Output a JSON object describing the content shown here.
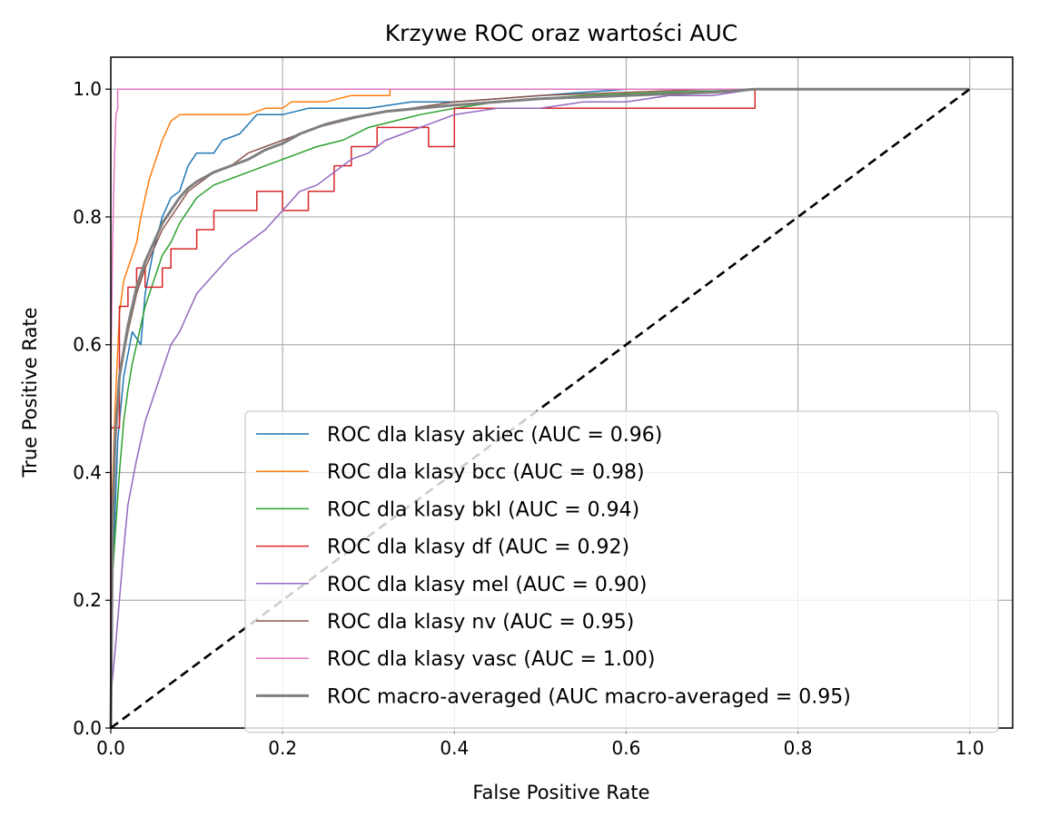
{
  "chart_data": {
    "type": "line",
    "title": "Krzywe ROC oraz wartości AUC",
    "xlabel": "False Positive Rate",
    "ylabel": "True Positive Rate",
    "xlim": [
      0.0,
      1.05
    ],
    "ylim": [
      0.0,
      1.05
    ],
    "xticks": [
      "0.0",
      "0.2",
      "0.4",
      "0.6",
      "0.8",
      "1.0"
    ],
    "yticks": [
      "0.0",
      "0.2",
      "0.4",
      "0.6",
      "0.8",
      "1.0"
    ],
    "grid": true,
    "legend_position": "lower-right",
    "series": [
      {
        "name": "ROC dla klasy akiec (AUC = 0.96)",
        "color": "#1f77b4",
        "points": [
          [
            0,
            0
          ],
          [
            0,
            0.18
          ],
          [
            0.004,
            0.3
          ],
          [
            0.008,
            0.45
          ],
          [
            0.015,
            0.55
          ],
          [
            0.025,
            0.62
          ],
          [
            0.035,
            0.6
          ],
          [
            0.04,
            0.68
          ],
          [
            0.05,
            0.75
          ],
          [
            0.06,
            0.8
          ],
          [
            0.07,
            0.83
          ],
          [
            0.08,
            0.84
          ],
          [
            0.09,
            0.88
          ],
          [
            0.1,
            0.9
          ],
          [
            0.12,
            0.9
          ],
          [
            0.13,
            0.92
          ],
          [
            0.15,
            0.93
          ],
          [
            0.17,
            0.96
          ],
          [
            0.2,
            0.96
          ],
          [
            0.23,
            0.97
          ],
          [
            0.27,
            0.97
          ],
          [
            0.3,
            0.97
          ],
          [
            0.35,
            0.98
          ],
          [
            0.4,
            0.98
          ],
          [
            0.5,
            0.99
          ],
          [
            0.6,
            1.0
          ],
          [
            0.8,
            1.0
          ],
          [
            1.0,
            1.0
          ]
        ]
      },
      {
        "name": "ROC dla klasy bcc (AUC = 0.98)",
        "color": "#ff7f0e",
        "points": [
          [
            0,
            0
          ],
          [
            0,
            0.3
          ],
          [
            0.005,
            0.5
          ],
          [
            0.01,
            0.65
          ],
          [
            0.015,
            0.7
          ],
          [
            0.02,
            0.72
          ],
          [
            0.03,
            0.76
          ],
          [
            0.035,
            0.8
          ],
          [
            0.04,
            0.83
          ],
          [
            0.045,
            0.86
          ],
          [
            0.05,
            0.88
          ],
          [
            0.055,
            0.9
          ],
          [
            0.06,
            0.92
          ],
          [
            0.07,
            0.95
          ],
          [
            0.08,
            0.96
          ],
          [
            0.1,
            0.96
          ],
          [
            0.12,
            0.96
          ],
          [
            0.14,
            0.96
          ],
          [
            0.16,
            0.96
          ],
          [
            0.18,
            0.97
          ],
          [
            0.2,
            0.97
          ],
          [
            0.21,
            0.98
          ],
          [
            0.25,
            0.98
          ],
          [
            0.28,
            0.99
          ],
          [
            0.325,
            0.99
          ],
          [
            0.325,
            1.0
          ],
          [
            0.5,
            1.0
          ],
          [
            1.0,
            1.0
          ]
        ]
      },
      {
        "name": "ROC dla klasy bkl (AUC = 0.94)",
        "color": "#2ca02c",
        "points": [
          [
            0,
            0
          ],
          [
            0,
            0.2
          ],
          [
            0.005,
            0.3
          ],
          [
            0.01,
            0.4
          ],
          [
            0.015,
            0.48
          ],
          [
            0.02,
            0.53
          ],
          [
            0.025,
            0.57
          ],
          [
            0.03,
            0.6
          ],
          [
            0.035,
            0.63
          ],
          [
            0.04,
            0.66
          ],
          [
            0.05,
            0.7
          ],
          [
            0.06,
            0.74
          ],
          [
            0.07,
            0.76
          ],
          [
            0.08,
            0.79
          ],
          [
            0.09,
            0.81
          ],
          [
            0.1,
            0.83
          ],
          [
            0.12,
            0.85
          ],
          [
            0.14,
            0.86
          ],
          [
            0.16,
            0.87
          ],
          [
            0.18,
            0.88
          ],
          [
            0.2,
            0.89
          ],
          [
            0.22,
            0.9
          ],
          [
            0.24,
            0.91
          ],
          [
            0.27,
            0.92
          ],
          [
            0.3,
            0.94
          ],
          [
            0.33,
            0.95
          ],
          [
            0.36,
            0.96
          ],
          [
            0.4,
            0.97
          ],
          [
            0.45,
            0.98
          ],
          [
            0.55,
            0.99
          ],
          [
            0.65,
            0.995
          ],
          [
            0.77,
            1.0
          ],
          [
            1.0,
            1.0
          ]
        ]
      },
      {
        "name": "ROC dla klasy df (AUC = 0.92)",
        "color": "#d62728",
        "points": [
          [
            0,
            0
          ],
          [
            0,
            0.47
          ],
          [
            0.01,
            0.47
          ],
          [
            0.01,
            0.66
          ],
          [
            0.02,
            0.66
          ],
          [
            0.02,
            0.69
          ],
          [
            0.03,
            0.69
          ],
          [
            0.03,
            0.72
          ],
          [
            0.04,
            0.72
          ],
          [
            0.04,
            0.69
          ],
          [
            0.06,
            0.69
          ],
          [
            0.06,
            0.72
          ],
          [
            0.07,
            0.72
          ],
          [
            0.07,
            0.75
          ],
          [
            0.1,
            0.75
          ],
          [
            0.1,
            0.78
          ],
          [
            0.12,
            0.78
          ],
          [
            0.12,
            0.81
          ],
          [
            0.17,
            0.81
          ],
          [
            0.17,
            0.84
          ],
          [
            0.2,
            0.84
          ],
          [
            0.2,
            0.81
          ],
          [
            0.23,
            0.81
          ],
          [
            0.23,
            0.84
          ],
          [
            0.26,
            0.84
          ],
          [
            0.26,
            0.88
          ],
          [
            0.28,
            0.88
          ],
          [
            0.28,
            0.91
          ],
          [
            0.31,
            0.91
          ],
          [
            0.31,
            0.94
          ],
          [
            0.37,
            0.94
          ],
          [
            0.37,
            0.91
          ],
          [
            0.4,
            0.91
          ],
          [
            0.4,
            0.97
          ],
          [
            0.75,
            0.97
          ],
          [
            0.75,
            1.0
          ],
          [
            1.0,
            1.0
          ]
        ]
      },
      {
        "name": "ROC dla klasy mel (AUC = 0.90)",
        "color": "#9467bd",
        "points": [
          [
            0,
            0
          ],
          [
            0,
            0.05
          ],
          [
            0.005,
            0.12
          ],
          [
            0.01,
            0.2
          ],
          [
            0.015,
            0.28
          ],
          [
            0.02,
            0.35
          ],
          [
            0.03,
            0.42
          ],
          [
            0.04,
            0.48
          ],
          [
            0.05,
            0.52
          ],
          [
            0.06,
            0.56
          ],
          [
            0.07,
            0.6
          ],
          [
            0.08,
            0.62
          ],
          [
            0.09,
            0.65
          ],
          [
            0.1,
            0.68
          ],
          [
            0.12,
            0.71
          ],
          [
            0.14,
            0.74
          ],
          [
            0.16,
            0.76
          ],
          [
            0.18,
            0.78
          ],
          [
            0.2,
            0.81
          ],
          [
            0.22,
            0.84
          ],
          [
            0.24,
            0.85
          ],
          [
            0.26,
            0.87
          ],
          [
            0.28,
            0.89
          ],
          [
            0.3,
            0.9
          ],
          [
            0.32,
            0.92
          ],
          [
            0.34,
            0.93
          ],
          [
            0.36,
            0.94
          ],
          [
            0.38,
            0.95
          ],
          [
            0.4,
            0.96
          ],
          [
            0.45,
            0.97
          ],
          [
            0.5,
            0.97
          ],
          [
            0.55,
            0.98
          ],
          [
            0.6,
            0.98
          ],
          [
            0.65,
            0.99
          ],
          [
            0.7,
            0.99
          ],
          [
            0.75,
            1.0
          ],
          [
            1.0,
            1.0
          ]
        ]
      },
      {
        "name": "ROC dla klasy nv (AUC = 0.95)",
        "color": "#8c564b",
        "points": [
          [
            0,
            0
          ],
          [
            0,
            0.3
          ],
          [
            0.005,
            0.45
          ],
          [
            0.01,
            0.55
          ],
          [
            0.02,
            0.62
          ],
          [
            0.03,
            0.68
          ],
          [
            0.04,
            0.72
          ],
          [
            0.05,
            0.75
          ],
          [
            0.06,
            0.78
          ],
          [
            0.07,
            0.8
          ],
          [
            0.08,
            0.82
          ],
          [
            0.09,
            0.84
          ],
          [
            0.1,
            0.85
          ],
          [
            0.12,
            0.87
          ],
          [
            0.14,
            0.88
          ],
          [
            0.16,
            0.9
          ],
          [
            0.18,
            0.91
          ],
          [
            0.2,
            0.92
          ],
          [
            0.22,
            0.93
          ],
          [
            0.24,
            0.94
          ],
          [
            0.27,
            0.95
          ],
          [
            0.3,
            0.96
          ],
          [
            0.35,
            0.97
          ],
          [
            0.4,
            0.98
          ],
          [
            0.5,
            0.99
          ],
          [
            0.6,
            0.995
          ],
          [
            0.7,
            1.0
          ],
          [
            1.0,
            1.0
          ]
        ]
      },
      {
        "name": "ROC dla klasy vasc (AUC = 1.00)",
        "color": "#e377c2",
        "points": [
          [
            0,
            0
          ],
          [
            0,
            0.55
          ],
          [
            0.002,
            0.75
          ],
          [
            0.004,
            0.88
          ],
          [
            0.006,
            0.96
          ],
          [
            0.008,
            0.97
          ],
          [
            0.008,
            1.0
          ],
          [
            1.0,
            1.0
          ]
        ]
      },
      {
        "name": "ROC macro-averaged (AUC macro-averaged = 0.95)",
        "color": "#7f7f7f",
        "points": [
          [
            0,
            0
          ],
          [
            0.002,
            0.3
          ],
          [
            0.005,
            0.45
          ],
          [
            0.01,
            0.55
          ],
          [
            0.02,
            0.63
          ],
          [
            0.03,
            0.69
          ],
          [
            0.04,
            0.73
          ],
          [
            0.05,
            0.76
          ],
          [
            0.06,
            0.79
          ],
          [
            0.07,
            0.81
          ],
          [
            0.08,
            0.83
          ],
          [
            0.09,
            0.845
          ],
          [
            0.1,
            0.855
          ],
          [
            0.12,
            0.87
          ],
          [
            0.14,
            0.88
          ],
          [
            0.16,
            0.89
          ],
          [
            0.18,
            0.905
          ],
          [
            0.2,
            0.915
          ],
          [
            0.22,
            0.93
          ],
          [
            0.25,
            0.945
          ],
          [
            0.28,
            0.955
          ],
          [
            0.32,
            0.965
          ],
          [
            0.36,
            0.97
          ],
          [
            0.4,
            0.975
          ],
          [
            0.45,
            0.98
          ],
          [
            0.5,
            0.985
          ],
          [
            0.6,
            0.99
          ],
          [
            0.7,
            0.995
          ],
          [
            0.75,
            1.0
          ],
          [
            1.0,
            1.0
          ]
        ],
        "thick": true
      }
    ],
    "reference_line": {
      "points": [
        [
          0,
          0
        ],
        [
          1,
          1
        ]
      ],
      "color": "#000000",
      "style": "dashed"
    }
  }
}
